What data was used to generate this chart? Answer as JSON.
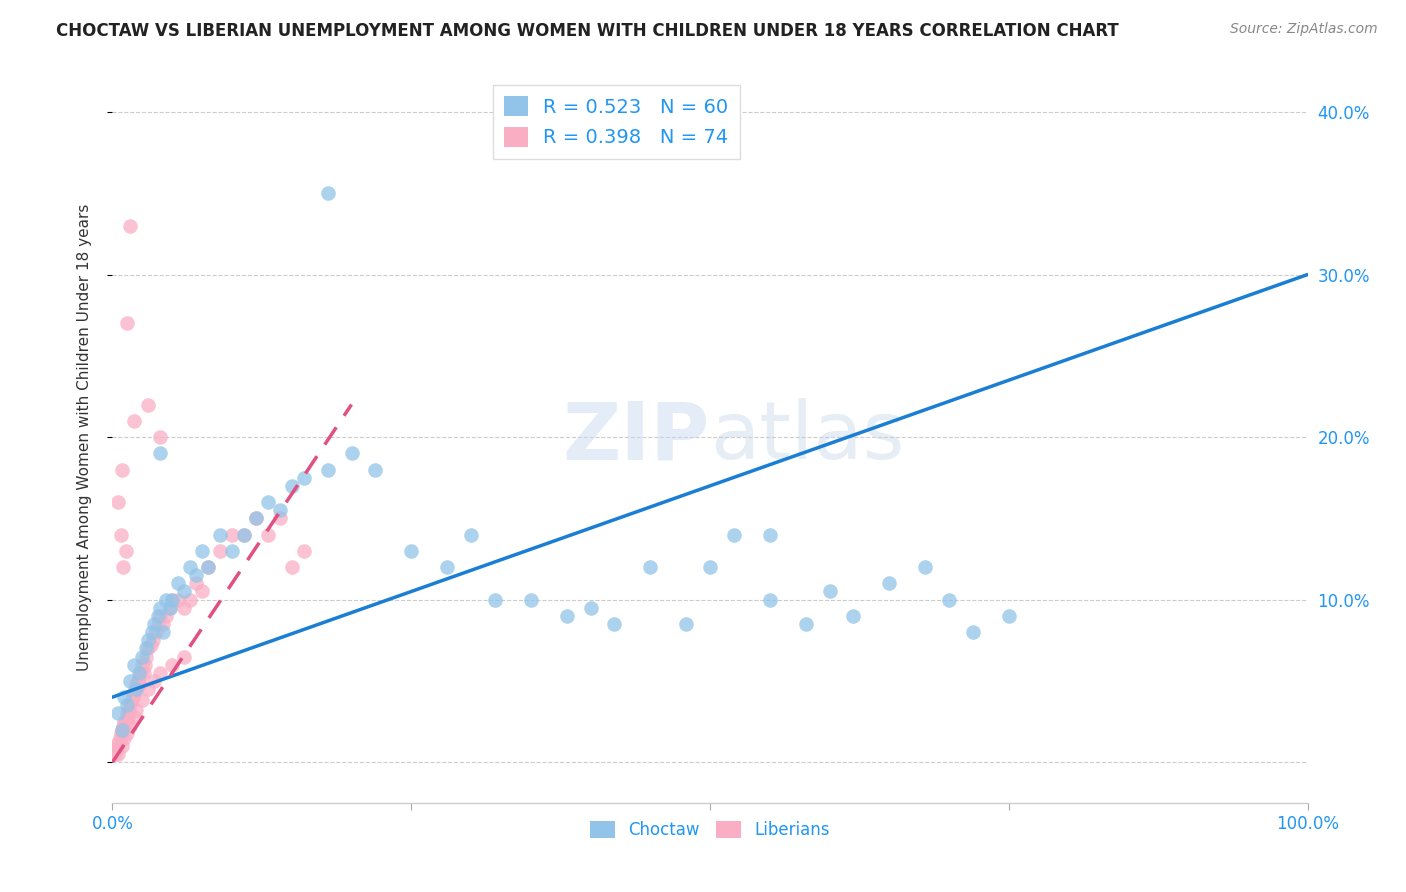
{
  "title": "CHOCTAW VS LIBERIAN UNEMPLOYMENT AMONG WOMEN WITH CHILDREN UNDER 18 YEARS CORRELATION CHART",
  "source": "Source: ZipAtlas.com",
  "ylabel": "Unemployment Among Women with Children Under 18 years",
  "xlim": [
    0,
    1.0
  ],
  "ylim": [
    -0.025,
    0.425
  ],
  "choctaw_color": "#91c4e8",
  "liberian_color": "#f9aec4",
  "choctaw_R": 0.523,
  "choctaw_N": 60,
  "liberian_R": 0.398,
  "liberian_N": 74,
  "choctaw_line_color": "#1a7fd4",
  "liberian_line_color": "#e05080",
  "legend_label_1": "Choctaw",
  "legend_label_2": "Liberians",
  "choctaw_x": [
    0.005,
    0.008,
    0.01,
    0.012,
    0.015,
    0.018,
    0.02,
    0.022,
    0.025,
    0.028,
    0.03,
    0.033,
    0.035,
    0.038,
    0.04,
    0.042,
    0.045,
    0.048,
    0.05,
    0.055,
    0.06,
    0.065,
    0.07,
    0.075,
    0.08,
    0.09,
    0.1,
    0.11,
    0.12,
    0.13,
    0.14,
    0.15,
    0.16,
    0.18,
    0.2,
    0.22,
    0.25,
    0.28,
    0.3,
    0.32,
    0.35,
    0.38,
    0.4,
    0.42,
    0.45,
    0.48,
    0.5,
    0.52,
    0.55,
    0.58,
    0.6,
    0.62,
    0.65,
    0.68,
    0.7,
    0.72,
    0.75,
    0.18,
    0.04,
    0.55
  ],
  "choctaw_y": [
    0.03,
    0.02,
    0.04,
    0.035,
    0.05,
    0.06,
    0.045,
    0.055,
    0.065,
    0.07,
    0.075,
    0.08,
    0.085,
    0.09,
    0.095,
    0.08,
    0.1,
    0.095,
    0.1,
    0.11,
    0.105,
    0.12,
    0.115,
    0.13,
    0.12,
    0.14,
    0.13,
    0.14,
    0.15,
    0.16,
    0.155,
    0.17,
    0.175,
    0.18,
    0.19,
    0.18,
    0.13,
    0.12,
    0.14,
    0.1,
    0.1,
    0.09,
    0.095,
    0.085,
    0.12,
    0.085,
    0.12,
    0.14,
    0.1,
    0.085,
    0.105,
    0.09,
    0.11,
    0.12,
    0.1,
    0.08,
    0.09,
    0.35,
    0.19,
    0.14
  ],
  "liberian_x": [
    0.002,
    0.003,
    0.004,
    0.005,
    0.006,
    0.007,
    0.008,
    0.009,
    0.01,
    0.011,
    0.012,
    0.013,
    0.014,
    0.015,
    0.016,
    0.017,
    0.018,
    0.019,
    0.02,
    0.021,
    0.022,
    0.023,
    0.024,
    0.025,
    0.026,
    0.027,
    0.028,
    0.03,
    0.032,
    0.034,
    0.036,
    0.038,
    0.04,
    0.042,
    0.045,
    0.048,
    0.05,
    0.055,
    0.06,
    0.065,
    0.07,
    0.075,
    0.08,
    0.09,
    0.1,
    0.11,
    0.12,
    0.13,
    0.14,
    0.15,
    0.16,
    0.005,
    0.008,
    0.01,
    0.012,
    0.015,
    0.018,
    0.02,
    0.025,
    0.03,
    0.035,
    0.04,
    0.05,
    0.06,
    0.03,
    0.04,
    0.015,
    0.012,
    0.018,
    0.008,
    0.005,
    0.007,
    0.009,
    0.011
  ],
  "liberian_y": [
    0.005,
    0.008,
    0.01,
    0.012,
    0.015,
    0.018,
    0.02,
    0.022,
    0.025,
    0.025,
    0.03,
    0.028,
    0.032,
    0.035,
    0.038,
    0.04,
    0.042,
    0.045,
    0.048,
    0.05,
    0.052,
    0.048,
    0.055,
    0.06,
    0.055,
    0.06,
    0.065,
    0.07,
    0.072,
    0.075,
    0.08,
    0.085,
    0.09,
    0.085,
    0.09,
    0.095,
    0.1,
    0.1,
    0.095,
    0.1,
    0.11,
    0.105,
    0.12,
    0.13,
    0.14,
    0.14,
    0.15,
    0.14,
    0.15,
    0.12,
    0.13,
    0.005,
    0.01,
    0.015,
    0.018,
    0.022,
    0.028,
    0.032,
    0.038,
    0.045,
    0.05,
    0.055,
    0.06,
    0.065,
    0.22,
    0.2,
    0.33,
    0.27,
    0.21,
    0.18,
    0.16,
    0.14,
    0.12,
    0.13
  ],
  "choctaw_line_x0": 0.0,
  "choctaw_line_y0": 0.04,
  "choctaw_line_x1": 1.0,
  "choctaw_line_y1": 0.3,
  "liberian_line_x0": 0.0,
  "liberian_line_y0": 0.0,
  "liberian_line_x1": 0.2,
  "liberian_line_y1": 0.22
}
